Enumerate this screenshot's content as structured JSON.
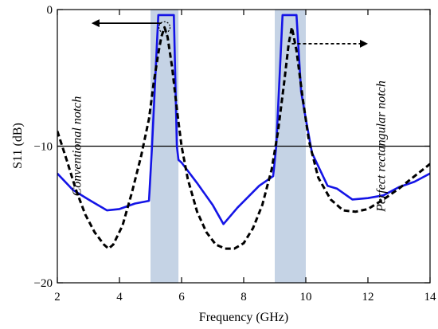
{
  "chart_data": {
    "type": "line",
    "xlabel": "Frequency  (GHz)",
    "ylabel": "S11 (dB)",
    "xlim": [
      2,
      14
    ],
    "ylim": [
      -20,
      0
    ],
    "xticks": [
      "2",
      "4",
      "6",
      "8",
      "10",
      "12",
      "14"
    ],
    "yticks": [
      "0",
      "−10",
      "−20"
    ],
    "reference_line": -10,
    "bands": [
      {
        "x0": 5.0,
        "x1": 5.9,
        "color": "#c5d3e5"
      },
      {
        "x0": 9.0,
        "x1": 10.0,
        "color": "#c5d3e5"
      }
    ],
    "series": [
      {
        "key": "rectangular",
        "style": "solid",
        "color": "#1414e6",
        "x": [
          2.0,
          2.5,
          3.0,
          3.6,
          4.0,
          4.5,
          4.95,
          5.05,
          5.25,
          5.75,
          5.85,
          5.9,
          6.0,
          6.5,
          7.0,
          7.35,
          7.8,
          8.5,
          8.95,
          9.05,
          9.25,
          9.7,
          9.85,
          10.0,
          10.2,
          10.7,
          11.0,
          11.5,
          12.0,
          12.5,
          13.0,
          13.5,
          14.0
        ],
        "y": [
          -12.0,
          -13.2,
          -13.9,
          -14.7,
          -14.6,
          -14.2,
          -14.0,
          -10.0,
          -0.4,
          -0.4,
          -10.0,
          -11.0,
          -11.2,
          -12.7,
          -14.3,
          -15.7,
          -14.5,
          -12.9,
          -12.2,
          -10.0,
          -0.4,
          -0.4,
          -6.0,
          -8.0,
          -10.5,
          -12.9,
          -13.1,
          -13.9,
          -13.8,
          -13.6,
          -13.0,
          -12.6,
          -12.0
        ]
      },
      {
        "key": "conventional",
        "style": "dashed",
        "color": "#000000",
        "x": [
          2.0,
          2.3,
          2.6,
          2.9,
          3.2,
          3.5,
          3.65,
          3.8,
          4.1,
          4.4,
          4.7,
          4.95,
          5.1,
          5.25,
          5.35,
          5.45,
          5.55,
          5.7,
          5.85,
          6.0,
          6.2,
          6.5,
          6.8,
          7.1,
          7.4,
          7.7,
          8.0,
          8.3,
          8.6,
          8.9,
          9.1,
          9.3,
          9.45,
          9.55,
          9.7,
          9.9,
          10.1,
          10.4,
          10.8,
          11.2,
          11.6,
          12.0,
          12.5,
          13.0,
          13.5,
          14.0
        ],
        "y": [
          -8.9,
          -11.0,
          -13.2,
          -15.0,
          -16.3,
          -17.2,
          -17.5,
          -17.2,
          -15.8,
          -13.4,
          -10.7,
          -8.0,
          -5.4,
          -3.2,
          -2.0,
          -1.3,
          -2.0,
          -4.3,
          -7.3,
          -10.0,
          -12.4,
          -14.8,
          -16.3,
          -17.2,
          -17.5,
          -17.5,
          -17.1,
          -16.0,
          -14.3,
          -11.7,
          -9.0,
          -5.4,
          -2.5,
          -1.3,
          -3.0,
          -6.5,
          -9.6,
          -12.3,
          -13.9,
          -14.7,
          -14.8,
          -14.6,
          -13.9,
          -13.1,
          -12.2,
          -11.3
        ]
      }
    ],
    "annotations": [
      {
        "key": "left",
        "text": "Conventional notch",
        "x": 2.75,
        "y": -10.0
      },
      {
        "key": "right",
        "text": "Perfect rectangular notch",
        "x": 12.55,
        "y": -10.0
      }
    ],
    "arrows": [
      {
        "key": "left",
        "from": [
          5.35,
          -1.0
        ],
        "to": [
          3.1,
          -1.0
        ]
      },
      {
        "key": "right",
        "from": [
          9.55,
          -2.5
        ],
        "to": [
          12.0,
          -2.5
        ]
      }
    ],
    "marker_circle": {
      "x": 5.45,
      "y": -1.3
    }
  }
}
